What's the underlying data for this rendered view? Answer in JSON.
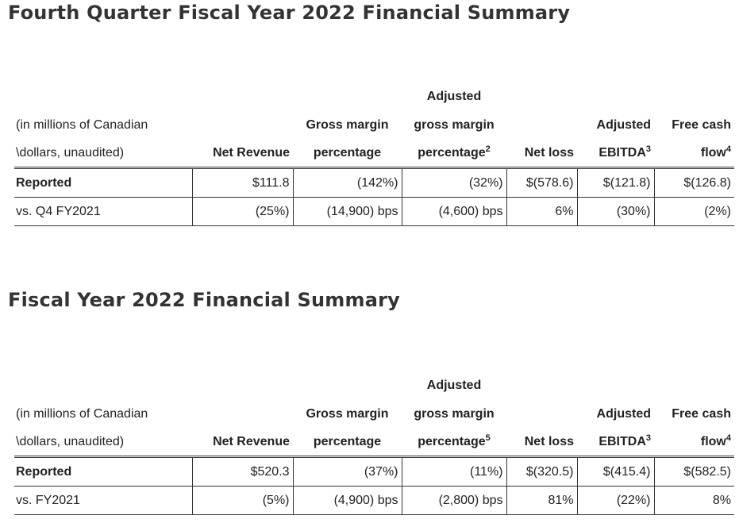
{
  "sections": [
    {
      "title": "Fourth Quarter Fiscal Year 2022 Financial Summary",
      "header": {
        "desc_line1": "(in millions of Canadian",
        "desc_line2": "\\dollars, unaudited)",
        "net_revenue": "Net Revenue",
        "gross_margin_l1": "Gross margin",
        "gross_margin_l2": "percentage",
        "adj_gross_l0": "Adjusted",
        "adj_gross_l1": "gross margin",
        "adj_gross_l2": "percentage",
        "adj_gross_note": "2",
        "net_loss": "Net loss",
        "adj_ebitda_l1": "Adjusted",
        "adj_ebitda_l2": "EBITDA",
        "adj_ebitda_note": "3",
        "fcf_l1": "Free cash",
        "fcf_l2": "flow",
        "fcf_note": "4"
      },
      "rows": [
        {
          "label": "Reported",
          "values": [
            "$111.8",
            "(142%)",
            "(32%)",
            "$(578.6)",
            "$(121.8)",
            "$(126.8)"
          ]
        },
        {
          "label": "vs. Q4 FY2021",
          "values": [
            "(25%)",
            "(14,900) bps",
            "(4,600) bps",
            "6%",
            "(30%)",
            "(2%)"
          ]
        }
      ]
    },
    {
      "title": "Fiscal Year 2022 Financial Summary",
      "header": {
        "desc_line1": "(in millions of Canadian",
        "desc_line2": "\\dollars, unaudited)",
        "net_revenue": "Net Revenue",
        "gross_margin_l1": "Gross margin",
        "gross_margin_l2": "percentage",
        "adj_gross_l0": "Adjusted",
        "adj_gross_l1": "gross margin",
        "adj_gross_l2": "percentage",
        "adj_gross_note": "5",
        "net_loss": "Net loss",
        "adj_ebitda_l1": "Adjusted",
        "adj_ebitda_l2": "EBITDA",
        "adj_ebitda_note": "3",
        "fcf_l1": "Free cash",
        "fcf_l2": "flow",
        "fcf_note": "4"
      },
      "rows": [
        {
          "label": "Reported",
          "values": [
            "$520.3",
            "(37%)",
            "(11%)",
            "$(320.5)",
            "$(415.4)",
            "$(582.5)"
          ]
        },
        {
          "label": "vs. FY2021",
          "values": [
            "(5%)",
            "(4,900) bps",
            "(2,800) bps",
            "81%",
            "(22%)",
            "8%"
          ]
        }
      ]
    }
  ]
}
